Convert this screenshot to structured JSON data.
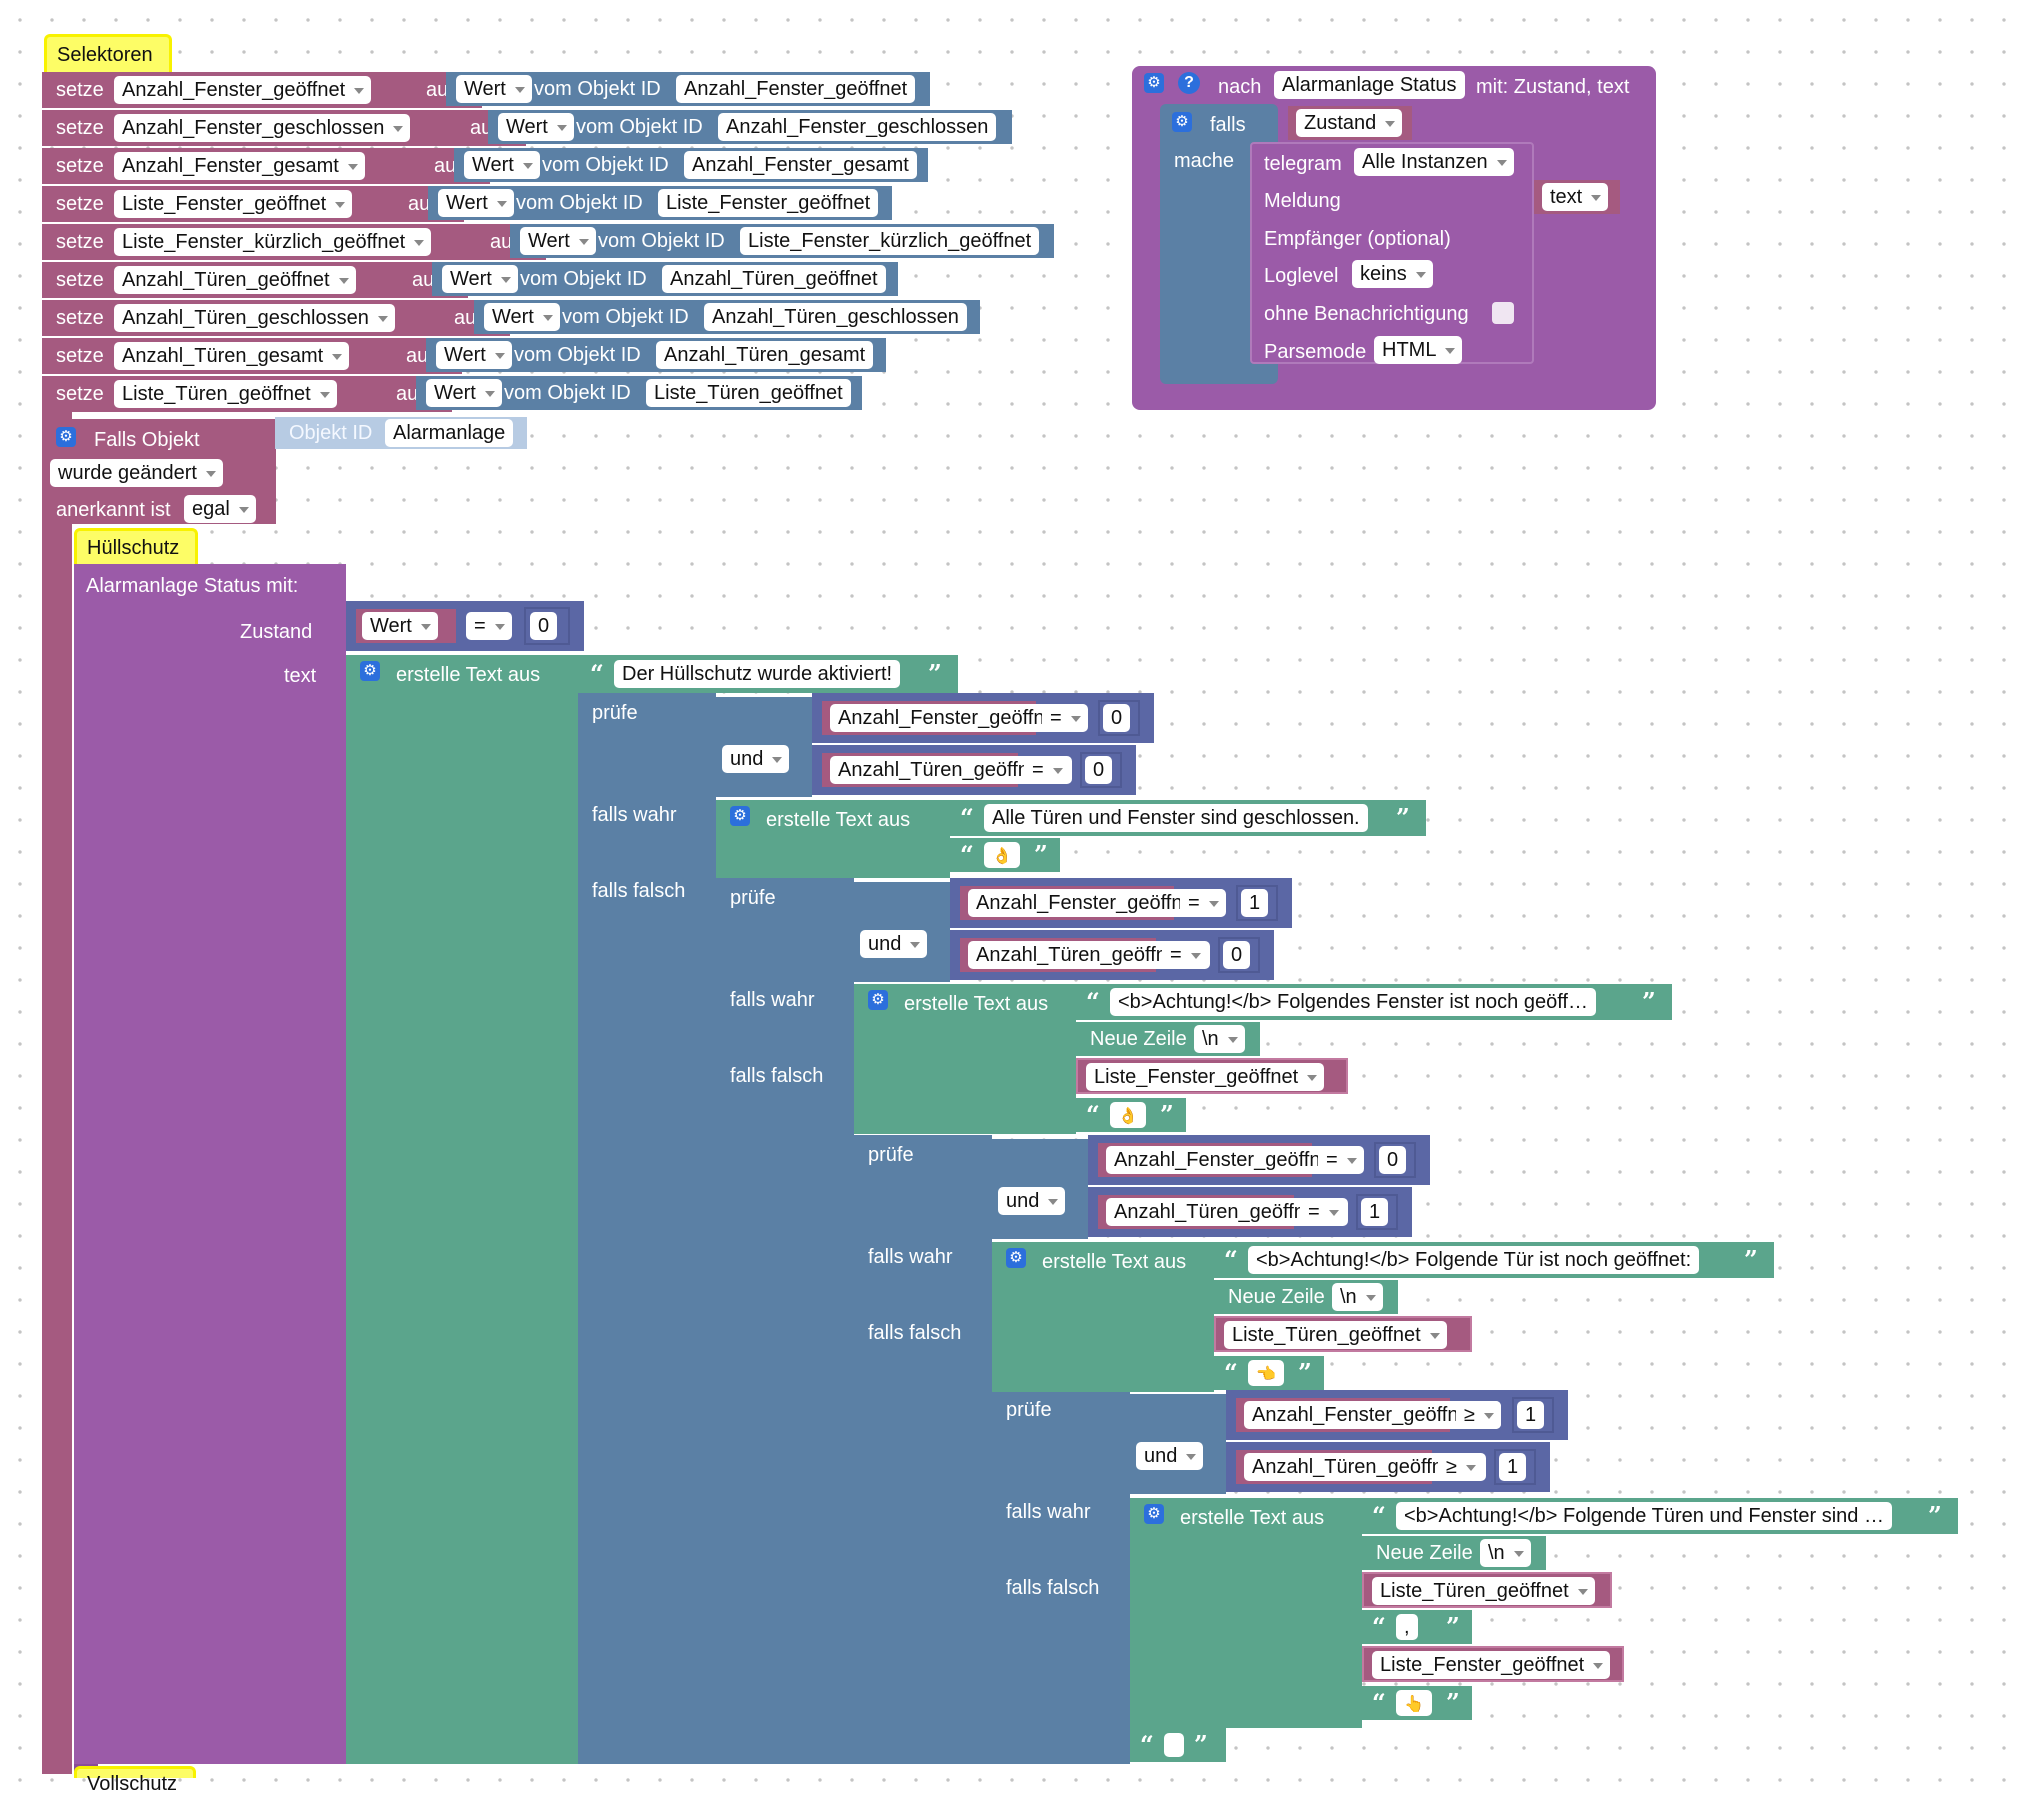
{
  "common": {
    "setze": "setze",
    "auf": "auf",
    "value": "Wert",
    "vom_objekt_id": "vom Objekt ID",
    "pruefe": "prüfe",
    "und": "und",
    "falls_wahr": "falls wahr",
    "falls_falsch": "falls falsch",
    "erstelle_text_aus": "erstelle Text aus",
    "neue_zeile": "Neue Zeile",
    "newline": "\\n",
    "eq": "=",
    "ge": "≥",
    "open_quote": "“",
    "close_quote": "”",
    "gear": "⚙",
    "question": "?"
  },
  "selectors": {
    "label": "Selektoren",
    "rows": [
      {
        "var": "Anzahl_Fenster_geöffnet",
        "object_id": "Anzahl_Fenster_geöffnet"
      },
      {
        "var": "Anzahl_Fenster_geschlossen",
        "object_id": "Anzahl_Fenster_geschlossen"
      },
      {
        "var": "Anzahl_Fenster_gesamt",
        "object_id": "Anzahl_Fenster_gesamt"
      },
      {
        "var": "Liste_Fenster_geöffnet",
        "object_id": "Liste_Fenster_geöffnet"
      },
      {
        "var": "Liste_Fenster_kürzlich_geöffnet",
        "object_id": "Liste_Fenster_kürzlich_geöffnet"
      },
      {
        "var": "Anzahl_Türen_geöffnet",
        "object_id": "Anzahl_Türen_geöffnet"
      },
      {
        "var": "Anzahl_Türen_geschlossen",
        "object_id": "Anzahl_Türen_geschlossen"
      },
      {
        "var": "Anzahl_Türen_gesamt",
        "object_id": "Anzahl_Türen_gesamt"
      },
      {
        "var": "Liste_Türen_geöffnet",
        "object_id": "Liste_Türen_geöffnet"
      }
    ]
  },
  "trigger": {
    "label": "Falls Objekt",
    "object_id_label": "Objekt ID",
    "object_id": "Alarmanlage",
    "changed": "wurde geändert",
    "acknowledged_label": "anerkannt ist",
    "acknowledged": "egal"
  },
  "huellschutz": {
    "label": "Hüllschutz",
    "call_label": "Alarmanlage Status   mit:",
    "param_zustand": "Zustand",
    "param_text": "text",
    "zustand_value": "0",
    "text1": "Der Hüllschutz wurde aktiviert!",
    "cond1": {
      "a": "Anzahl_Fenster_geöffnet",
      "av": "0",
      "b": "Anzahl_Türen_geöffnet",
      "bv": "0"
    },
    "text_closed": "Alle Türen und Fenster sind geschlossen.",
    "emoji_ok": "👌",
    "cond2": {
      "a": "Anzahl_Fenster_geöffnet",
      "av": "1",
      "b": "Anzahl_Türen_geöffnet",
      "bv": "0"
    },
    "text_window": "<b>Achtung!</b> Folgendes Fenster ist noch geöff…",
    "list_window": "Liste_Fenster_geöffnet",
    "emoji_2": "👌",
    "cond3": {
      "a": "Anzahl_Fenster_geöffnet",
      "av": "0",
      "b": "Anzahl_Türen_geöffnet",
      "bv": "1"
    },
    "text_door": "<b>Achtung!</b> Folgende Tür ist noch geöffnet:",
    "list_door": "Liste_Türen_geöffnet",
    "emoji_3": "👈",
    "cond4": {
      "a": "Anzahl_Fenster_geöffnet",
      "av": "1",
      "b": "Anzahl_Türen_geöffnet",
      "bv": "1"
    },
    "text_both": "<b>Achtung!</b> Folgende Türen und Fenster sind …",
    "list_both_doors": "Liste_Türen_geöffnet",
    "comma": ",",
    "list_both_windows": "Liste_Fenster_geöffnet",
    "emoji_4": "👆"
  },
  "vollschutz": {
    "label": "Vollschutz"
  },
  "function": {
    "header_nach": "nach",
    "name": "Alarmanlage Status",
    "params": "mit: Zustand, text",
    "falls": "falls",
    "mache": "mache",
    "condition": "Zustand",
    "telegram": "telegram",
    "instances": "Alle Instanzen",
    "meldung": "Meldung",
    "meldung_value": "text",
    "empfaenger": "Empfänger (optional)",
    "loglevel": "Loglevel",
    "loglevel_value": "keins",
    "ohne_benachrichtigung": "ohne Benachrichtigung",
    "parsemode": "Parsemode",
    "parsemode_value": "HTML"
  },
  "colors": {
    "procedure": "#9b5ba8",
    "variable": "#a55a80",
    "logic": "#5b80a5",
    "text": "#5ba58c",
    "math": "#5b67a5",
    "hat": "#fdfd66"
  }
}
